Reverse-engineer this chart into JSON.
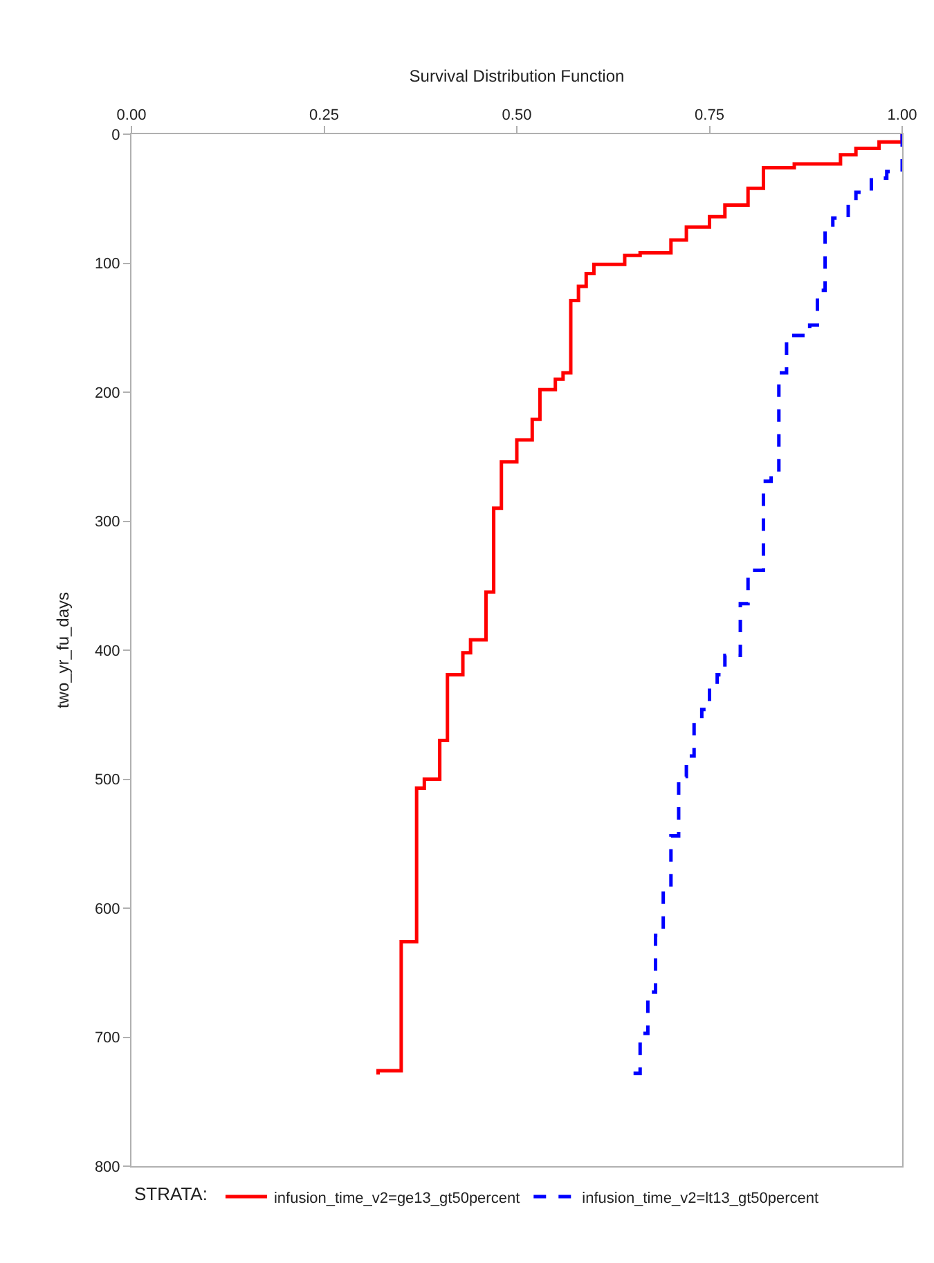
{
  "chart_data": {
    "type": "step",
    "xlabel": "Survival Distribution Function",
    "ylabel": "two_yr_fu_days",
    "legend_title": "STRATA:",
    "xlim": [
      0,
      1
    ],
    "xticks": [
      {
        "value": 0,
        "label": "0.00"
      },
      {
        "value": 0.25,
        "label": "0.25"
      },
      {
        "value": 0.5,
        "label": "0.50"
      },
      {
        "value": 0.75,
        "label": "0.75"
      },
      {
        "value": 1,
        "label": "1.00"
      }
    ],
    "ylim": [
      800,
      0
    ],
    "yticks": [
      0,
      100,
      200,
      300,
      400,
      500,
      600,
      700,
      800
    ],
    "grid": false,
    "legend": "bottom",
    "series": [
      {
        "name": "infusion_time_v2=ge13_gt50percent",
        "color": "#ff0000",
        "line_style": "solid",
        "values": [
          0,
          6,
          11,
          16,
          23,
          26,
          42,
          55,
          64,
          72,
          82,
          92,
          94,
          101,
          108,
          118,
          129,
          185,
          190,
          198,
          221,
          237,
          254,
          290,
          355,
          392,
          402,
          419,
          470,
          500,
          507,
          626,
          726,
          729
        ],
        "x": [
          1.0,
          0.97,
          0.94,
          0.92,
          0.86,
          0.82,
          0.8,
          0.77,
          0.75,
          0.72,
          0.7,
          0.66,
          0.64,
          0.6,
          0.59,
          0.58,
          0.57,
          0.56,
          0.55,
          0.53,
          0.52,
          0.5,
          0.48,
          0.47,
          0.46,
          0.44,
          0.43,
          0.41,
          0.4,
          0.38,
          0.37,
          0.35,
          0.32,
          0.32
        ]
      },
      {
        "name": "infusion_time_v2=lt13_gt50percent",
        "color": "#0000ff",
        "line_style": "dashed",
        "values": [
          0,
          29,
          34,
          45,
          54,
          65,
          75,
          121,
          148,
          156,
          185,
          200,
          262,
          269,
          338,
          364,
          404,
          419,
          429,
          446,
          456,
          482,
          498,
          544,
          584,
          621,
          665,
          697,
          728
        ],
        "x": [
          1.0,
          0.98,
          0.96,
          0.94,
          0.93,
          0.91,
          0.9,
          0.89,
          0.88,
          0.85,
          0.84,
          0.84,
          0.83,
          0.82,
          0.8,
          0.79,
          0.77,
          0.76,
          0.75,
          0.74,
          0.73,
          0.72,
          0.71,
          0.7,
          0.69,
          0.68,
          0.67,
          0.66,
          0.65
        ]
      }
    ]
  }
}
